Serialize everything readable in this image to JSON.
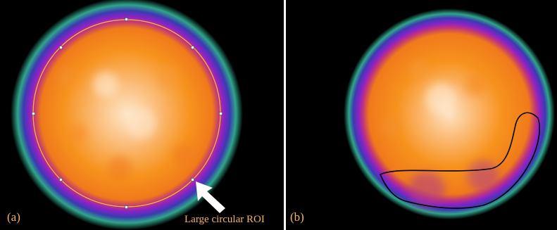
{
  "figure": {
    "panel_a": {
      "label": "(a)",
      "annotation": "Large circular ROI"
    },
    "panel_b": {
      "label": "(b)"
    }
  },
  "colors": {
    "background": "#000000",
    "phantom_core": "#fde0c0",
    "phantom_body": "#f7921e",
    "phantom_rim": "#7a22c8",
    "phantom_halo": "#2fa58a",
    "roi_circle": "#f5c242",
    "roi_handle": "#ffffff",
    "roi_outline_b": "#000000",
    "arrow": "#ffffff",
    "label_text": "#f2b26a"
  },
  "icons": {
    "pointer": "white-arrow-icon"
  }
}
